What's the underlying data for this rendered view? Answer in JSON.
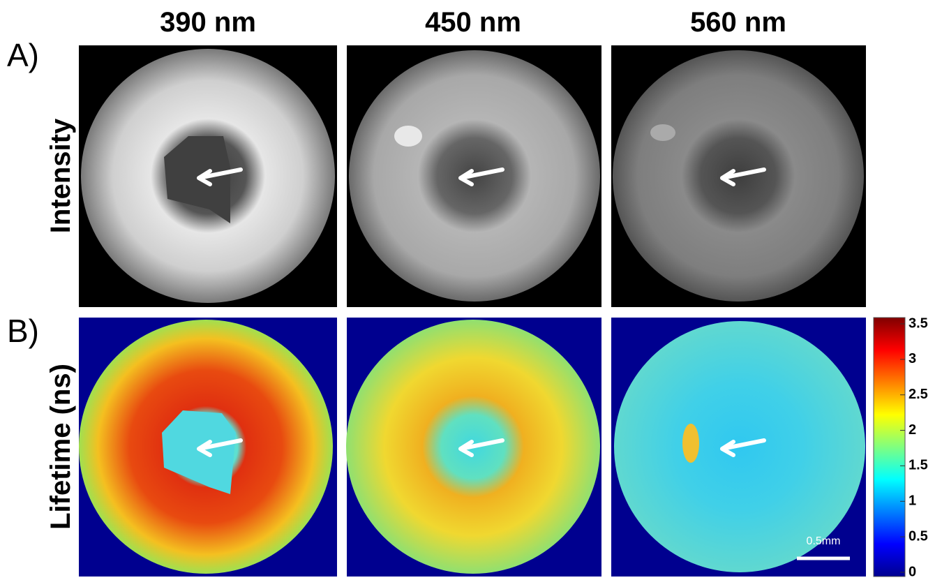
{
  "panel_labels": [
    "A)",
    "B)"
  ],
  "columns": [
    "390 nm",
    "450 nm",
    "560 nm"
  ],
  "rows": [
    "Intensity",
    "Lifetime (ns)"
  ],
  "colorbar": {
    "lim": [
      0,
      3.5
    ],
    "ticks": [
      0,
      0.5,
      1,
      1.5,
      2,
      2.5,
      3,
      3.5
    ]
  },
  "scale_bar": "0.5mm"
}
